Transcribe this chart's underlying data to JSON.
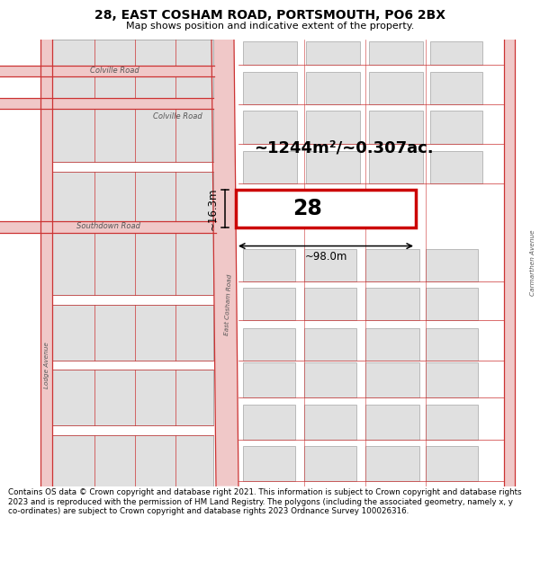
{
  "title": "28, EAST COSHAM ROAD, PORTSMOUTH, PO6 2BX",
  "subtitle": "Map shows position and indicative extent of the property.",
  "footer": "Contains OS data © Crown copyright and database right 2021. This information is subject to Crown copyright and database rights 2023 and is reproduced with the permission of HM Land Registry. The polygons (including the associated geometry, namely x, y co-ordinates) are subject to Crown copyright and database rights 2023 Ordnance Survey 100026316.",
  "area_label": "~1244m²/~0.307ac.",
  "width_label": "~98.0m",
  "height_label": "~16.3m",
  "property_number": "28",
  "map_bg": "#ffffff",
  "road_fill": "#f0c8c8",
  "road_line": "#cc3333",
  "bldg_fill": "#e0e0e0",
  "bldg_stroke": "#b0b0b0",
  "prop_fill": "#ffffff",
  "prop_stroke": "#cc0000",
  "prop_lw": 2.5,
  "text_color": "#000000",
  "label_color": "#555555",
  "dim_color": "#000000",
  "title_fontsize": 10,
  "subtitle_fontsize": 8,
  "footer_fontsize": 6.3,
  "area_fontsize": 13,
  "prop_label_fontsize": 17,
  "dim_fontsize": 8.5,
  "road_label_fontsize": 6.0,
  "road_lw": 0.9
}
